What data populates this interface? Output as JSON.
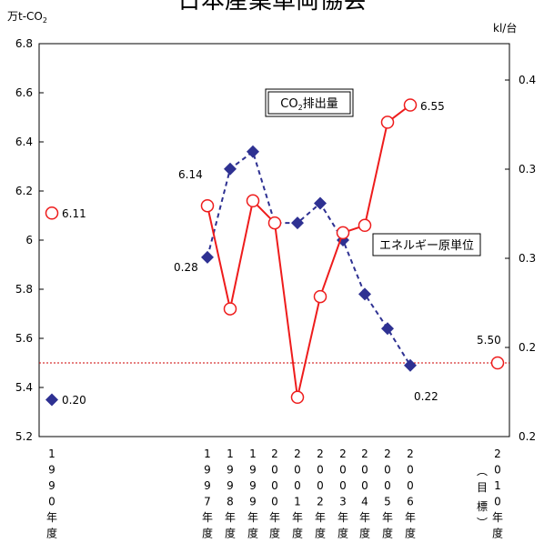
{
  "chart_data": {
    "type": "line",
    "title": "日本産業車両協会",
    "y_left_unit": "万t-CO2",
    "y_right_unit": "kl/台",
    "y_left_ticks": [
      "6.8",
      "6.6",
      "6.4",
      "6.2",
      "6",
      "5.8",
      "5.6",
      "5.4",
      "5.2"
    ],
    "y_right_ticks": [
      "0.4",
      "0.3",
      "0.3",
      "0.2",
      "0.2"
    ],
    "ylim_left": [
      5.2,
      6.8
    ],
    "x_labels": [
      [
        "1",
        "9",
        "9",
        "0",
        "年",
        "度"
      ],
      [
        "1",
        "9",
        "9",
        "7",
        "年",
        "度"
      ],
      [
        "1",
        "9",
        "9",
        "8",
        "年",
        "度"
      ],
      [
        "1",
        "9",
        "9",
        "9",
        "年",
        "度"
      ],
      [
        "2",
        "0",
        "0",
        "0",
        "年",
        "度"
      ],
      [
        "2",
        "0",
        "0",
        "1",
        "年",
        "度"
      ],
      [
        "2",
        "0",
        "0",
        "2",
        "年",
        "度"
      ],
      [
        "2",
        "0",
        "0",
        "3",
        "年",
        "度"
      ],
      [
        "2",
        "0",
        "0",
        "4",
        "年",
        "度"
      ],
      [
        "2",
        "0",
        "0",
        "5",
        "年",
        "度"
      ],
      [
        "2",
        "0",
        "0",
        "6",
        "年",
        "度"
      ],
      [
        "2",
        "0",
        "1",
        "0",
        "年",
        "度"
      ]
    ],
    "target_label": [
      "︵",
      "目",
      "標",
      "︶"
    ],
    "series": [
      {
        "name": "CO2排出量",
        "color": "#ee1c1c",
        "marker": "open-circle",
        "values": [
          6.11,
          6.14,
          5.72,
          6.16,
          6.07,
          5.36,
          5.77,
          6.03,
          6.06,
          6.48,
          6.55,
          5.5
        ]
      },
      {
        "name": "エネルギー原単位",
        "color": "#2e3192",
        "marker": "diamond",
        "values_plot": [
          5.35,
          5.93,
          6.29,
          6.36,
          6.07,
          6.07,
          6.15,
          6.0,
          5.78,
          5.64,
          5.49
        ]
      }
    ],
    "data_labels": [
      {
        "text": "6.11"
      },
      {
        "text": "6.14"
      },
      {
        "text": "6.55"
      },
      {
        "text": "5.50"
      },
      {
        "text": "0.20"
      },
      {
        "text": "0.28"
      },
      {
        "text": "0.22"
      }
    ],
    "target_line_value": 5.5,
    "legend": [
      "CO2排出量",
      "エネルギー原単位"
    ]
  }
}
